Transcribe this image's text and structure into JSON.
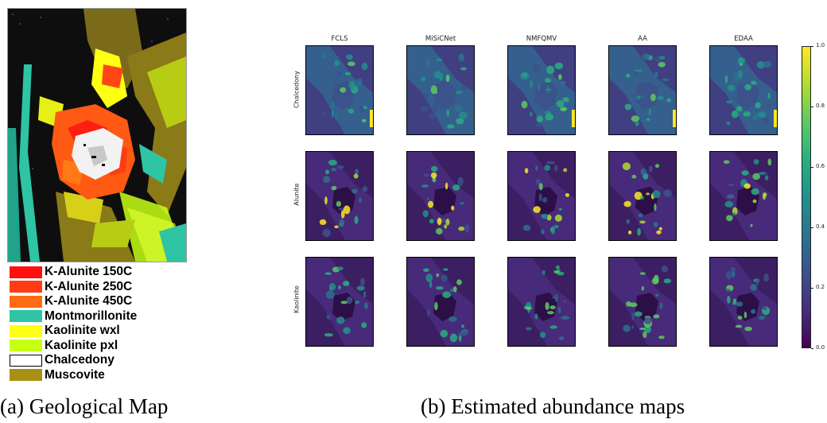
{
  "legend": [
    {
      "label": "K-Alunite 150C",
      "color": "#ff1010"
    },
    {
      "label": "K-Alunite 250C",
      "color": "#ff3c14"
    },
    {
      "label": "K-Alunite 450C",
      "color": "#ff6a14"
    },
    {
      "label": "Montmorillonite",
      "color": "#2ec4a4"
    },
    {
      "label": "Kaolinite wxl",
      "color": "#ffff14"
    },
    {
      "label": "Kaolinite pxl",
      "color": "#c6ff14"
    },
    {
      "label": "Chalcedony",
      "color": "#ffffff"
    },
    {
      "label": "Muscovite",
      "color": "#a89014"
    }
  ],
  "captions": {
    "a": "(a) Geological Map",
    "b": "(b) Estimated abundance maps"
  },
  "columns": [
    "FCLS",
    "MiSiCNet",
    "NMFQMV",
    "AA",
    "EDAA"
  ],
  "rows": [
    "Chalcedony",
    "Alunite",
    "Kaolinite"
  ],
  "colorbar": {
    "colormap": "viridis",
    "ticks": [
      "1.0",
      "0.8",
      "0.6",
      "0.4",
      "0.2",
      "0.0"
    ]
  }
}
